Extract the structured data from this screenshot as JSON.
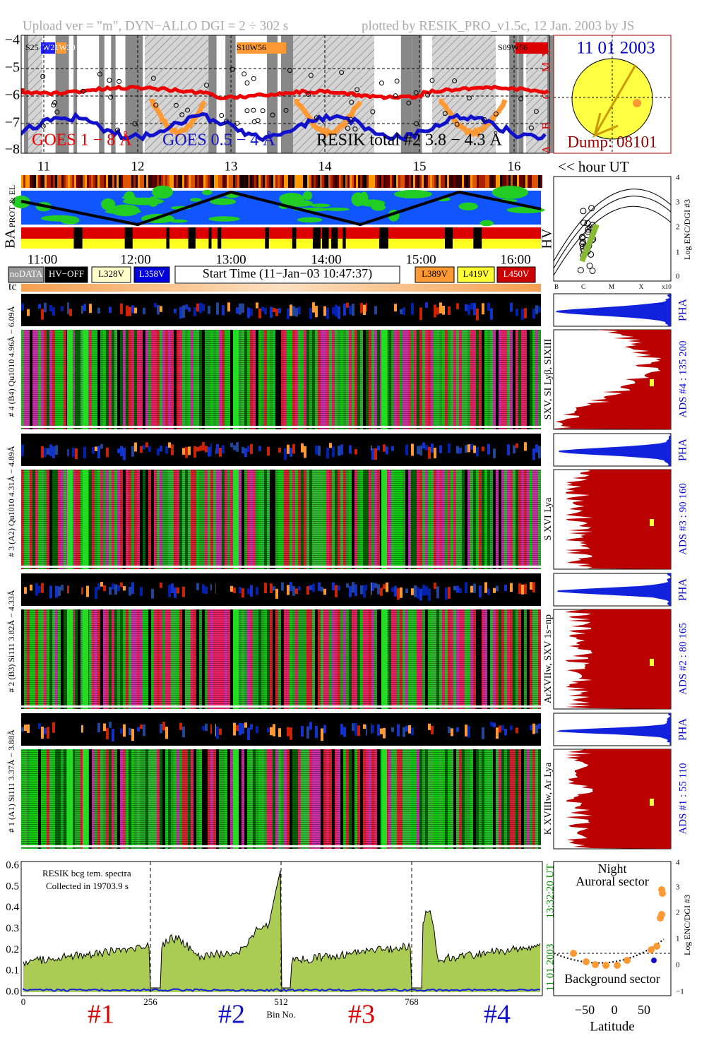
{
  "header": {
    "upload": "Upload ver = \"m\", DYN−ALLO DGI =   2 ÷ 302 s",
    "plotted": "plotted by RESIK_PRO_v1.5c, 12 Jan. 2003 by JS"
  },
  "goes": {
    "yticks": [
      "−4",
      "−5",
      "−6",
      "−7",
      "−8"
    ],
    "classes": [
      "X",
      "M",
      "C",
      "B",
      "A"
    ],
    "regions": [
      "S25",
      "W21W30",
      "S10W56",
      "S09W56"
    ],
    "legend": [
      "GOES 1 − 8 Å",
      "GOES 0.5 − 4 Å",
      "RESIK total #2 3.8 − 4.3 Å"
    ]
  },
  "sun": {
    "date": "11 01 2003",
    "dump": "Dump: 08101"
  },
  "days": [
    "11",
    "12",
    "13",
    "14",
    "15",
    "16"
  ],
  "hour_ut": "<< hour UT",
  "strip_labels": {
    "prot": "PROT & EL",
    "ba": "BA",
    "hv": "HV"
  },
  "hours": [
    "11:00",
    "12:00",
    "13:00",
    "14:00",
    "15:00",
    "16:00"
  ],
  "legend": [
    "noDATA",
    "HV−OFF",
    "L328V",
    "L358V",
    "L389V",
    "L419V",
    "L450V"
  ],
  "start_time": "Start Time (11−Jan−03 10:47:37)",
  "tc": "tc",
  "hv_panel": {
    "yticks": [
      "4",
      "3",
      "2",
      "1",
      "0"
    ],
    "xticks": [
      "B",
      "C",
      "M",
      "X",
      "x10"
    ],
    "ylabel": "Log ENC/DGI #3"
  },
  "channels": [
    {
      "label": "# 4 (B4) Qu1010 4.96Å − 6.09Å",
      "pha": "PHA",
      "ads": "ADS #4 :   135 200",
      "lines": "SXV, SI Lyβ, SIXIII"
    },
    {
      "label": "# 3 (A2) Qu1010 4.31Å − 4.89Å",
      "pha": "PHA",
      "ads": "ADS #3 :   90 160",
      "lines": "S XVI Lya"
    },
    {
      "label": "# 2 (B3) Si111 3.82Å − 4.33Å",
      "pha": "PHA",
      "ads": "ADS #2 :   80 165",
      "lines": "ArXVIIw, SXV 1s−np"
    },
    {
      "label": "# 1 (A1) Si111 3.37Å − 3.88Å",
      "pha": "PHA",
      "ads": "ADS #1 :   55 110",
      "lines": "K XVIIIw, Ar Lya"
    }
  ],
  "spectrum": {
    "yticks": [
      "0.0",
      "0.1",
      "0.2",
      "0.3",
      "0.4",
      "0.5",
      "0.6"
    ],
    "xticks": [
      "0",
      "256",
      "512",
      "768"
    ],
    "xlabel": "Bin No.",
    "note1": "RESIK bcg tem. spectra",
    "note2": "Collected in 19703.9 s",
    "date": "11 01 2003",
    "time": "13:32:20 UT",
    "sections": [
      "#1",
      "#2",
      "#3",
      "#4"
    ]
  },
  "latitude": {
    "title": "Night",
    "upper": "Auroral sector",
    "lower": "Background sector",
    "xticks": [
      "−50",
      "0",
      "50"
    ],
    "xlabel": "Latitude",
    "yticks": [
      "4",
      "3",
      "2",
      "1",
      "0",
      "−1"
    ],
    "ylabel": "Log ENC/DGI #3"
  }
}
